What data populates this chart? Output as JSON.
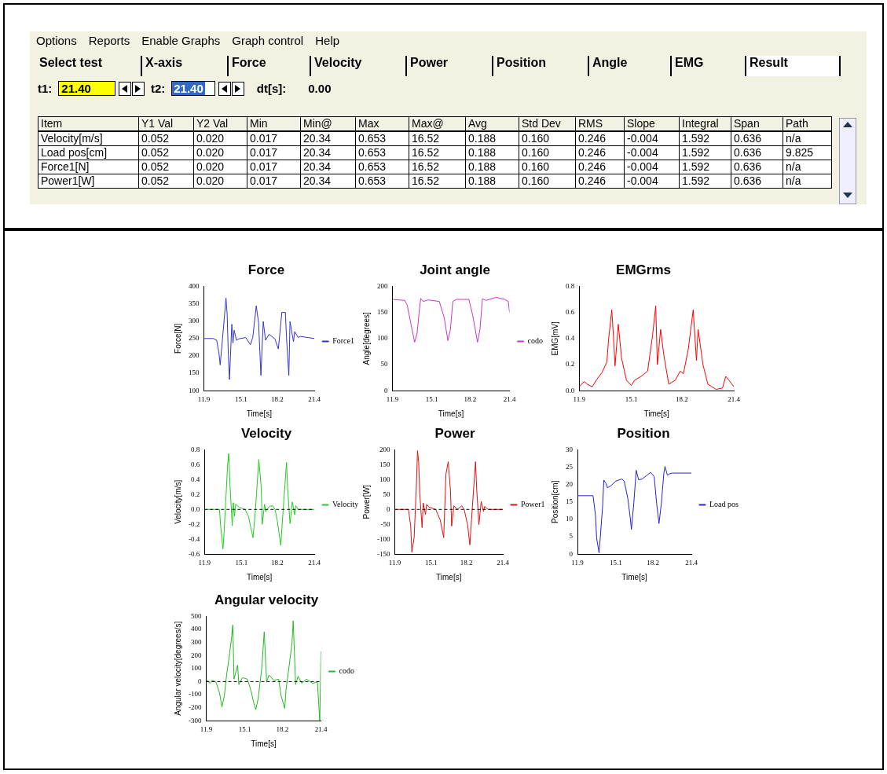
{
  "chart_data": [
    {
      "type": "other",
      "annotations": [
        "Options",
        "Reports",
        "Enable Graphs",
        "Graph control",
        "Help",
        "Select test",
        "X-axis",
        "Force",
        "Velocity",
        "Power",
        "Position",
        "Angle",
        "EMG",
        "Result",
        "t1:",
        "21.40",
        "t2:",
        "21.40",
        "dt[s]:",
        "0.00"
      ],
      "categories": [
        "Item",
        "Y1 Val",
        "Y2 Val",
        "Min",
        "Min@",
        "Max",
        "Max@",
        "Avg",
        "Std Dev",
        "RMS",
        "Slope",
        "Integral",
        "Span",
        "Path"
      ],
      "y_categories": [
        "Velocity[m/s]",
        "Load pos[cm]",
        "Force1[N]",
        "Power1[W]"
      ],
      "cell_labels": [
        [
          "0.052",
          "0.020",
          "0.017",
          "20.34",
          "0.653",
          "16.52",
          "0.188",
          "0.160",
          "0.246",
          "-0.004",
          "1.592",
          "0.636",
          "n/a"
        ],
        [
          "0.052",
          "0.020",
          "0.017",
          "20.34",
          "0.653",
          "16.52",
          "0.188",
          "0.160",
          "0.246",
          "-0.004",
          "1.592",
          "0.636",
          "9.825"
        ],
        [
          "0.052",
          "0.020",
          "0.017",
          "20.34",
          "0.653",
          "16.52",
          "0.188",
          "0.160",
          "0.246",
          "-0.004",
          "1.592",
          "0.636",
          "n/a"
        ],
        [
          "0.052",
          "0.020",
          "0.017",
          "20.34",
          "0.653",
          "16.52",
          "0.188",
          "0.160",
          "0.246",
          "-0.004",
          "1.592",
          "0.636",
          "n/a"
        ]
      ]
    },
    {
      "type": "line",
      "title": "Force",
      "xlabel": "Time[s]",
      "ylabel": "Force[N]",
      "legend": "right",
      "marker": "none",
      "xlim": [
        11.9,
        21.4
      ],
      "xticks": [
        11.9,
        15.1,
        18.2,
        21.4
      ],
      "ylim": [
        100,
        400
      ],
      "yticks": [
        100,
        150,
        200,
        250,
        300,
        350,
        400
      ],
      "x": [
        11.9,
        12.7,
        13.0,
        13.2,
        13.3,
        13.6,
        13.8,
        13.9,
        14.0,
        14.1,
        14.3,
        14.4,
        14.5,
        14.7,
        14.9,
        15.5,
        15.9,
        16.1,
        16.4,
        16.6,
        16.8,
        17.0,
        17.2,
        17.5,
        18.0,
        18.3,
        18.6,
        18.9,
        19.0,
        19.2,
        19.3,
        19.6,
        19.7,
        20.0,
        20.2,
        21.4
      ],
      "series": [
        {
          "name": "Force1",
          "color": "#3333cc",
          "values": [
            250,
            250,
            245,
            207,
            174,
            287,
            366,
            320,
            203,
            132,
            291,
            237,
            274,
            245,
            249,
            253,
            232,
            253,
            344,
            295,
            144,
            299,
            245,
            262,
            249,
            220,
            325,
            325,
            253,
            144,
            299,
            241,
            270,
            253,
            256,
            250
          ]
        }
      ]
    },
    {
      "type": "line",
      "title": "Joint angle",
      "xlabel": "Time[s]",
      "ylabel": "Angle[degrees]",
      "legend": "right",
      "marker": "none",
      "xlim": [
        11.9,
        21.4
      ],
      "xticks": [
        11.9,
        15.1,
        18.2,
        21.4
      ],
      "ylim": [
        0,
        200
      ],
      "yticks": [
        0,
        50,
        100,
        150,
        200
      ],
      "x": [
        11.9,
        12.9,
        13.1,
        13.4,
        13.7,
        13.9,
        14.1,
        14.2,
        14.4,
        14.8,
        15.7,
        16.1,
        16.4,
        16.6,
        16.8,
        17.1,
        18.1,
        18.4,
        18.8,
        19.0,
        19.2,
        19.5,
        20.3,
        21.0,
        21.3,
        21.4
      ],
      "series": [
        {
          "name": "codo",
          "color": "#cc33cc",
          "values": [
            175,
            173,
            164,
            128,
            93,
            110,
            158,
            177,
            171,
            174,
            171,
            140,
            96,
            117,
            171,
            175,
            175,
            146,
            93,
            117,
            176,
            173,
            179,
            175,
            171,
            150
          ]
        }
      ]
    },
    {
      "type": "line",
      "title": "EMGrms",
      "xlabel": "Time[s]",
      "ylabel": "EMG[mV]",
      "marker": "none",
      "xlim": [
        11.9,
        21.4
      ],
      "xticks": [
        11.9,
        15.1,
        18.2,
        21.4
      ],
      "ylim": [
        0,
        0.8
      ],
      "yticks": [
        {
          "value": 0,
          "label": "0.0"
        },
        0.2,
        0.4,
        0.6,
        0.8
      ],
      "x": [
        11.9,
        12.2,
        12.4,
        12.7,
        13.0,
        13.3,
        13.6,
        13.7,
        13.9,
        14.0,
        14.1,
        14.3,
        14.5,
        14.8,
        15.1,
        15.3,
        15.7,
        16.1,
        16.4,
        16.6,
        16.7,
        16.9,
        17.1,
        17.4,
        17.8,
        18.1,
        18.3,
        18.6,
        18.9,
        19.1,
        19.2,
        19.5,
        19.8,
        20.3,
        20.7,
        20.9,
        21.1,
        21.4
      ],
      "series": [
        {
          "color": "#ff0000",
          "values": [
            0.03,
            0.07,
            0.05,
            0.03,
            0.09,
            0.14,
            0.22,
            0.39,
            0.62,
            0.42,
            0.19,
            0.51,
            0.25,
            0.08,
            0.04,
            0.08,
            0.11,
            0.15,
            0.42,
            0.65,
            0.2,
            0.47,
            0.27,
            0.05,
            0.08,
            0.15,
            0.13,
            0.32,
            0.62,
            0.23,
            0.47,
            0.2,
            0.05,
            0.01,
            0.02,
            0.11,
            0.08,
            0.03
          ]
        }
      ]
    },
    {
      "type": "line",
      "title": "Velocity",
      "xlabel": "Time[s]",
      "ylabel": "Velocity[m/s]",
      "legend": "right",
      "marker": "none",
      "xlim": [
        11.9,
        21.4
      ],
      "xticks": [
        11.9,
        15.1,
        18.2,
        21.4
      ],
      "ylim": [
        -0.6,
        0.8
      ],
      "yticks": [
        -0.6,
        -0.4,
        -0.2,
        {
          "value": 0,
          "label": "0.0"
        },
        0.2,
        0.4,
        0.6,
        0.8
      ],
      "ref_lines": [
        {
          "axis": "y",
          "value": 0,
          "color": "#000000",
          "line_style": "dashed"
        }
      ],
      "x": [
        11.9,
        13.2,
        13.3,
        13.5,
        13.6,
        13.8,
        13.9,
        14.0,
        14.1,
        14.3,
        14.4,
        14.5,
        14.6,
        14.9,
        15.4,
        15.7,
        16.1,
        16.3,
        16.6,
        16.8,
        16.9,
        17.1,
        17.2,
        17.5,
        17.8,
        18.0,
        18.2,
        18.5,
        18.7,
        19.0,
        19.1,
        19.3,
        19.5,
        19.7,
        19.8,
        20.0,
        21.4
      ],
      "series": [
        {
          "name": "Velocity",
          "color": "#22cc22",
          "values": [
            0,
            0,
            -0.22,
            -0.53,
            -0.3,
            0.28,
            0.59,
            0.75,
            0.36,
            -0.22,
            0.09,
            -0.09,
            0.07,
            0.03,
            0,
            -0.09,
            -0.38,
            -0.03,
            0.67,
            0.32,
            -0.2,
            0.07,
            -0.03,
            0.04,
            0.05,
            0,
            -0.15,
            -0.48,
            -0.03,
            0.63,
            0.28,
            -0.19,
            0.1,
            -0.07,
            0.05,
            0,
            0
          ]
        }
      ]
    },
    {
      "type": "line",
      "title": "Power",
      "xlabel": "Time[s]",
      "ylabel": "Power[W]",
      "legend": "right",
      "marker": "none",
      "xlim": [
        11.9,
        21.4
      ],
      "xticks": [
        11.9,
        15.1,
        18.2,
        21.4
      ],
      "ylim": [
        -150,
        200
      ],
      "yticks": [
        -150,
        -100,
        -50,
        0,
        50,
        100,
        150,
        200
      ],
      "ref_lines": [
        {
          "axis": "y",
          "value": 0,
          "color": "#000000",
          "line_style": "dashed"
        }
      ],
      "x": [
        11.9,
        13.1,
        13.3,
        13.4,
        13.6,
        13.8,
        13.9,
        14.0,
        14.1,
        14.3,
        14.4,
        14.6,
        14.7,
        14.9,
        15.5,
        15.9,
        16.2,
        16.4,
        16.6,
        16.8,
        16.9,
        17.1,
        17.4,
        17.8,
        18.0,
        18.3,
        18.5,
        18.8,
        19.0,
        19.1,
        19.3,
        19.5,
        19.7,
        19.8,
        20.1,
        21.4
      ],
      "series": [
        {
          "name": "Power1",
          "color": "#dd1111",
          "values": [
            0,
            0,
            -56,
            -143,
            -95,
            80,
            197,
            158,
            51,
            -61,
            22,
            -17,
            17,
            8,
            0,
            -36,
            -95,
            119,
            160,
            61,
            -56,
            12,
            0,
            12,
            0,
            -51,
            -119,
            51,
            160,
            70,
            -51,
            27,
            -7,
            10,
            0,
            0
          ]
        }
      ]
    },
    {
      "type": "line",
      "title": "Position",
      "xlabel": "Time[s]",
      "ylabel": "Position[cm]",
      "legend": "right",
      "marker": "none",
      "xlim": [
        11.9,
        21.4
      ],
      "xticks": [
        11.9,
        15.1,
        18.2,
        21.4
      ],
      "ylim": [
        0,
        30
      ],
      "yticks": [
        0,
        5,
        10,
        15,
        20,
        25,
        30
      ],
      "x": [
        11.9,
        13.2,
        13.4,
        13.5,
        13.7,
        13.8,
        14.0,
        14.1,
        14.3,
        14.4,
        14.7,
        15.1,
        15.6,
        15.8,
        16.1,
        16.3,
        16.4,
        16.6,
        16.8,
        17.0,
        17.3,
        17.7,
        18.0,
        18.3,
        18.5,
        18.7,
        18.9,
        19.1,
        19.2,
        19.4,
        19.6,
        19.8,
        21.4
      ],
      "series": [
        {
          "name": "Load pos",
          "color": "#2222dd",
          "values": [
            16.8,
            16.8,
            11.3,
            4.6,
            0.4,
            4.6,
            13.9,
            21.3,
            20.2,
            19.1,
            19.7,
            21.0,
            21.6,
            21.0,
            16.0,
            10.5,
            7.1,
            14.7,
            24.1,
            21.4,
            21.6,
            22.7,
            23.5,
            22.3,
            14.7,
            8.8,
            14.7,
            23.1,
            25.2,
            22.7,
            23.1,
            23.3,
            23.3
          ]
        }
      ]
    },
    {
      "type": "line",
      "title": "Angular velocity",
      "xlabel": "Time[s]",
      "ylabel": "Angular velocity[degrees/s]",
      "legend": "right",
      "marker": "none",
      "xlim": [
        11.9,
        21.4
      ],
      "xticks": [
        11.9,
        15.1,
        18.2,
        21.4
      ],
      "ylim": [
        -300,
        500
      ],
      "yticks": [
        -300,
        -200,
        -100,
        0,
        100,
        200,
        300,
        400,
        500
      ],
      "ref_lines": [
        {
          "axis": "y",
          "value": 0,
          "color": "#000000",
          "line_style": "dashed"
        }
      ],
      "x": [
        11.9,
        12.2,
        12.4,
        12.7,
        13.0,
        13.2,
        13.4,
        13.6,
        13.8,
        14.0,
        14.1,
        14.2,
        14.5,
        14.6,
        14.9,
        15.3,
        15.6,
        15.8,
        16.0,
        16.2,
        16.5,
        16.6,
        16.7,
        16.9,
        17.1,
        17.5,
        17.9,
        18.1,
        18.4,
        18.5,
        18.8,
        19.0,
        19.1,
        19.3,
        19.5,
        19.8,
        20.2,
        20.7,
        21.1,
        21.3,
        21.4
      ],
      "series": [
        {
          "name": "codo",
          "color": "#22bb22",
          "values": [
            19,
            -13,
            9,
            -2,
            -87,
            -194,
            -109,
            62,
            190,
            339,
            435,
            19,
            126,
            -23,
            30,
            19,
            -66,
            -151,
            -215,
            -130,
            104,
            243,
            382,
            -2,
            51,
            9,
            19,
            -109,
            -205,
            -66,
            147,
            296,
            467,
            -23,
            41,
            -13,
            19,
            -13,
            -2,
            -300,
            232
          ]
        }
      ]
    }
  ]
}
